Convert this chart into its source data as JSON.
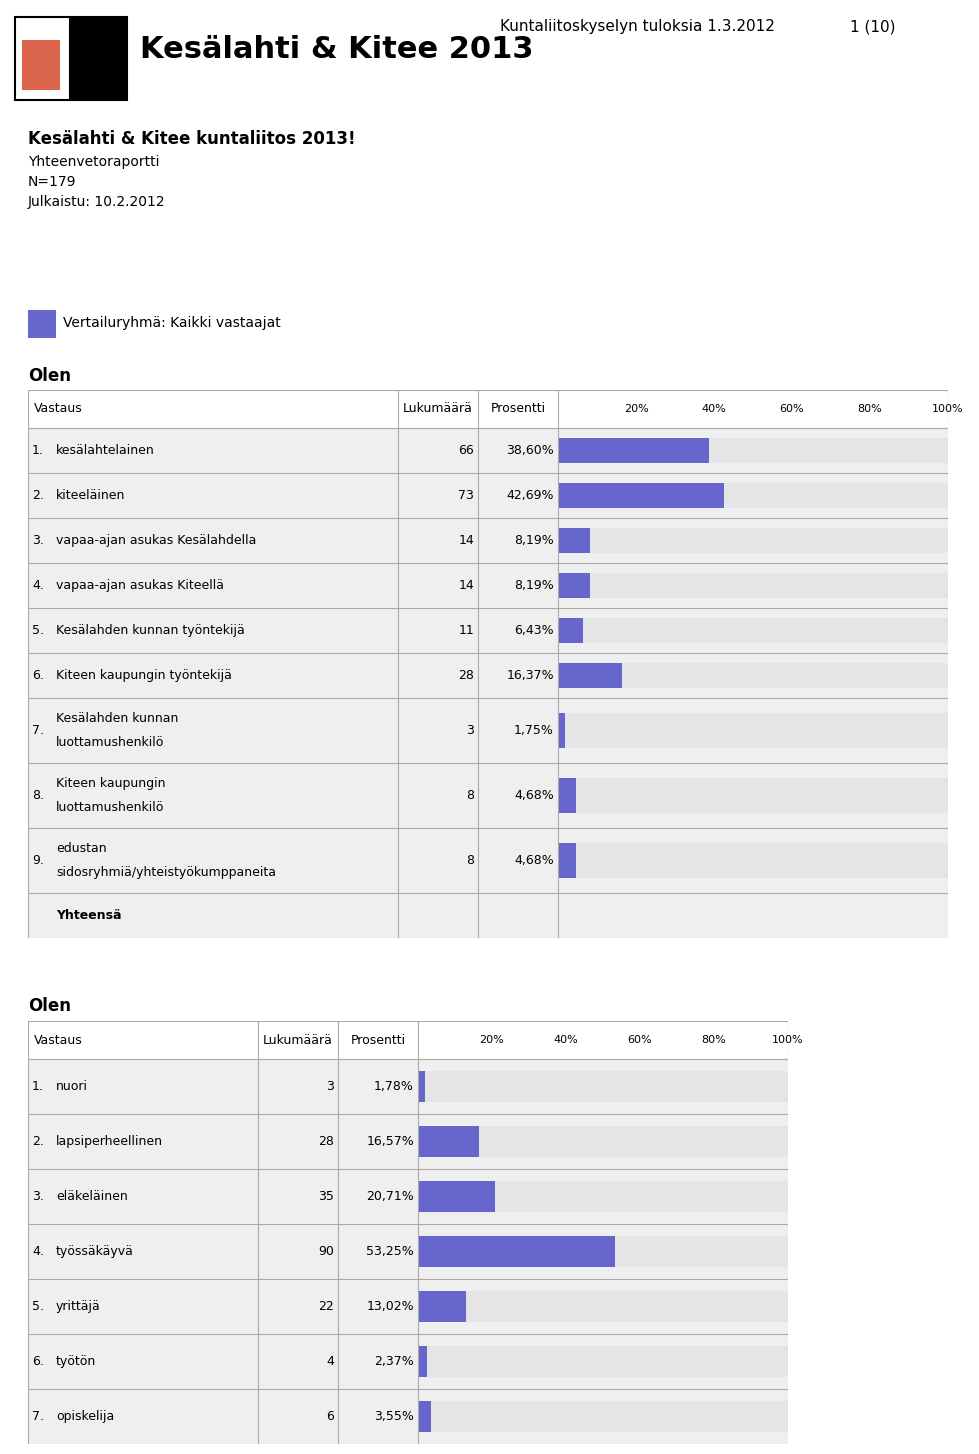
{
  "page_header": "Kuntaliitoskyselyn tuloksia 1.3.2012",
  "page_number": "1 (10)",
  "logo_title": "Kesälahti & Kitee 2013",
  "main_title": "Kesälahti & Kitee kuntaliitos 2013!",
  "subtitle1": "Yhteenvetoraportti",
  "subtitle2": "N=179",
  "subtitle3": "Julkaistu: 10.2.2012",
  "legend_label": "Vertailuryhmä: Kaikki vastaajat",
  "bar_color": "#6666cc",
  "bg_color": "#efefef",
  "border_color": "#aaaaaa",
  "table1_title": "Olen",
  "table1_rows": [
    {
      "num": "1.",
      "label": "kesälahtelainen",
      "count": 66,
      "pct": "38,60%",
      "pct_val": 38.6,
      "multiline": false
    },
    {
      "num": "2.",
      "label": "kiteeläinen",
      "count": 73,
      "pct": "42,69%",
      "pct_val": 42.69,
      "multiline": false
    },
    {
      "num": "3.",
      "label": "vapaa-ajan asukas Kesälahdella",
      "count": 14,
      "pct": "8,19%",
      "pct_val": 8.19,
      "multiline": false
    },
    {
      "num": "4.",
      "label": "vapaa-ajan asukas Kiteellä",
      "count": 14,
      "pct": "8,19%",
      "pct_val": 8.19,
      "multiline": false
    },
    {
      "num": "5.",
      "label": "Kesälahden kunnan työntekijä",
      "count": 11,
      "pct": "6,43%",
      "pct_val": 6.43,
      "multiline": false
    },
    {
      "num": "6.",
      "label": "Kiteen kaupungin työntekijä",
      "count": 28,
      "pct": "16,37%",
      "pct_val": 16.37,
      "multiline": false
    },
    {
      "num": "7.",
      "label": "Kesälahden kunnan\nluottamushenkilö",
      "count": 3,
      "pct": "1,75%",
      "pct_val": 1.75,
      "multiline": true
    },
    {
      "num": "8.",
      "label": "Kiteen kaupungin\nluottamushenkilö",
      "count": 8,
      "pct": "4,68%",
      "pct_val": 4.68,
      "multiline": true
    },
    {
      "num": "9.",
      "label": "edustan\nsidosryhmiä/yhteistyökumppaneita",
      "count": 8,
      "pct": "4,68%",
      "pct_val": 4.68,
      "multiline": true
    },
    {
      "num": "",
      "label": "Yhteensä",
      "count": null,
      "pct": "",
      "pct_val": null,
      "multiline": false
    }
  ],
  "table2_title": "Olen",
  "table2_rows": [
    {
      "num": "1.",
      "label": "nuori",
      "count": 3,
      "pct": "1,78%",
      "pct_val": 1.78
    },
    {
      "num": "2.",
      "label": "lapsiperheellinen",
      "count": 28,
      "pct": "16,57%",
      "pct_val": 16.57
    },
    {
      "num": "3.",
      "label": "eläkeläinen",
      "count": 35,
      "pct": "20,71%",
      "pct_val": 20.71
    },
    {
      "num": "4.",
      "label": "työssäkäyvä",
      "count": 90,
      "pct": "53,25%",
      "pct_val": 53.25
    },
    {
      "num": "5.",
      "label": "yrittäjä",
      "count": 22,
      "pct": "13,02%",
      "pct_val": 13.02
    },
    {
      "num": "6.",
      "label": "työtön",
      "count": 4,
      "pct": "2,37%",
      "pct_val": 2.37
    },
    {
      "num": "7.",
      "label": "opiskelija",
      "count": 6,
      "pct": "3,55%",
      "pct_val": 3.55
    }
  ]
}
